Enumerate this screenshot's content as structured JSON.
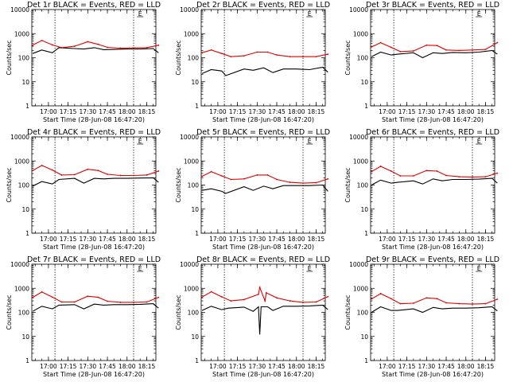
{
  "common": {
    "ylabel": "Counts/sec",
    "xlabel": "Start Time (28-Jun-08 16:47:20)",
    "x_ticks": [
      "17:00",
      "17:15",
      "17:30",
      "17:45",
      "18:00",
      "18:15"
    ],
    "y_ticks": [
      "1",
      "10",
      "100",
      "1000",
      "10000"
    ],
    "y_scale": "log",
    "ylim": [
      1,
      10000
    ],
    "xlim_minutes_of_day": [
      1007.33,
      1102
    ],
    "events_line_color": "#000000",
    "lld_line_color": "#e00000",
    "e_marker": "E",
    "dotted_verticals": [
      "17:05",
      "18:05"
    ]
  },
  "chart_data": [
    {
      "type": "line",
      "title": "Det 1r BLACK = Events, RED = LLD",
      "series": [
        {
          "name": "Events",
          "x": [
            "16:48",
            "16:55",
            "17:03",
            "17:08",
            "17:20",
            "17:27",
            "17:35",
            "17:42",
            "17:50",
            "18:00",
            "18:10",
            "18:20",
            "18:24"
          ],
          "y": [
            150,
            210,
            160,
            260,
            240,
            230,
            260,
            215,
            220,
            230,
            230,
            240,
            160
          ]
        },
        {
          "name": "LLD",
          "x": [
            "16:48",
            "16:55",
            "17:03",
            "17:10",
            "17:20",
            "17:30",
            "17:38",
            "17:45",
            "17:55",
            "18:05",
            "18:15",
            "18:24"
          ],
          "y": [
            330,
            520,
            340,
            260,
            300,
            460,
            360,
            270,
            250,
            255,
            260,
            330
          ]
        }
      ]
    },
    {
      "type": "line",
      "title": "Det 2r BLACK = Events, RED = LLD",
      "series": [
        {
          "name": "Events",
          "x": [
            "16:48",
            "16:55",
            "17:03",
            "17:06",
            "17:20",
            "17:27",
            "17:35",
            "17:42",
            "17:50",
            "18:00",
            "18:10",
            "18:20",
            "18:24"
          ],
          "y": [
            22,
            32,
            28,
            18,
            34,
            30,
            38,
            24,
            34,
            34,
            32,
            40,
            25
          ]
        },
        {
          "name": "LLD",
          "x": [
            "16:48",
            "16:55",
            "17:03",
            "17:10",
            "17:20",
            "17:30",
            "17:38",
            "17:45",
            "17:55",
            "18:05",
            "18:15",
            "18:24"
          ],
          "y": [
            160,
            210,
            150,
            110,
            120,
            170,
            170,
            130,
            110,
            110,
            110,
            140
          ]
        }
      ]
    },
    {
      "type": "line",
      "title": "Det 3r BLACK = Events, RED = LLD",
      "series": [
        {
          "name": "Events",
          "x": [
            "16:48",
            "16:55",
            "17:03",
            "17:08",
            "17:20",
            "17:27",
            "17:35",
            "17:42",
            "17:50",
            "18:00",
            "18:10",
            "18:20",
            "18:24"
          ],
          "y": [
            110,
            170,
            130,
            140,
            160,
            100,
            160,
            150,
            165,
            160,
            170,
            200,
            140
          ]
        },
        {
          "name": "LLD",
          "x": [
            "16:48",
            "16:55",
            "17:03",
            "17:10",
            "17:20",
            "17:30",
            "17:38",
            "17:45",
            "17:55",
            "18:05",
            "18:15",
            "18:24"
          ],
          "y": [
            280,
            420,
            270,
            180,
            190,
            330,
            320,
            210,
            200,
            210,
            220,
            420
          ]
        }
      ]
    },
    {
      "type": "line",
      "title": "Det 4r BLACK = Events, RED = LLD",
      "series": [
        {
          "name": "Events",
          "x": [
            "16:48",
            "16:55",
            "17:03",
            "17:08",
            "17:20",
            "17:27",
            "17:35",
            "17:42",
            "17:50",
            "18:00",
            "18:10",
            "18:20",
            "18:24"
          ],
          "y": [
            90,
            140,
            110,
            170,
            190,
            120,
            190,
            180,
            190,
            190,
            195,
            200,
            130
          ]
        },
        {
          "name": "LLD",
          "x": [
            "16:48",
            "16:55",
            "17:03",
            "17:10",
            "17:20",
            "17:30",
            "17:38",
            "17:45",
            "17:55",
            "18:05",
            "18:15",
            "18:24"
          ],
          "y": [
            400,
            650,
            420,
            260,
            270,
            450,
            400,
            280,
            250,
            250,
            260,
            380
          ]
        }
      ]
    },
    {
      "type": "line",
      "title": "Det 5r BLACK = Events, RED = LLD",
      "series": [
        {
          "name": "Events",
          "x": [
            "16:48",
            "16:55",
            "17:03",
            "17:06",
            "17:20",
            "17:27",
            "17:35",
            "17:42",
            "17:50",
            "18:00",
            "18:10",
            "18:20",
            "18:24"
          ],
          "y": [
            60,
            70,
            55,
            45,
            85,
            60,
            90,
            70,
            95,
            95,
            95,
            100,
            55
          ]
        },
        {
          "name": "LLD",
          "x": [
            "16:48",
            "16:55",
            "17:03",
            "17:10",
            "17:20",
            "17:30",
            "17:38",
            "17:45",
            "17:55",
            "18:05",
            "18:15",
            "18:24"
          ],
          "y": [
            230,
            360,
            240,
            170,
            180,
            260,
            260,
            170,
            130,
            120,
            125,
            180
          ]
        }
      ]
    },
    {
      "type": "line",
      "title": "Det 6r BLACK = Events, RED = LLD",
      "series": [
        {
          "name": "Events",
          "x": [
            "16:48",
            "16:55",
            "17:03",
            "17:08",
            "17:20",
            "17:27",
            "17:35",
            "17:42",
            "17:50",
            "18:00",
            "18:10",
            "18:20",
            "18:24"
          ],
          "y": [
            100,
            160,
            120,
            130,
            150,
            110,
            180,
            150,
            170,
            170,
            175,
            190,
            120
          ]
        },
        {
          "name": "LLD",
          "x": [
            "16:48",
            "16:55",
            "17:03",
            "17:10",
            "17:20",
            "17:30",
            "17:38",
            "17:45",
            "17:55",
            "18:05",
            "18:15",
            "18:24"
          ],
          "y": [
            360,
            600,
            380,
            240,
            240,
            400,
            380,
            250,
            220,
            215,
            220,
            310
          ]
        }
      ]
    },
    {
      "type": "line",
      "title": "Det 7r BLACK = Events, RED = LLD",
      "series": [
        {
          "name": "Events",
          "x": [
            "16:48",
            "16:55",
            "17:03",
            "17:08",
            "17:20",
            "17:27",
            "17:35",
            "17:42",
            "17:50",
            "18:00",
            "18:10",
            "18:20",
            "18:24"
          ],
          "y": [
            110,
            180,
            140,
            200,
            210,
            140,
            220,
            200,
            210,
            210,
            215,
            230,
            150
          ]
        },
        {
          "name": "LLD",
          "x": [
            "16:48",
            "16:55",
            "17:03",
            "17:10",
            "17:20",
            "17:30",
            "17:38",
            "17:45",
            "17:55",
            "18:05",
            "18:15",
            "18:24"
          ],
          "y": [
            420,
            700,
            430,
            270,
            270,
            470,
            420,
            290,
            260,
            260,
            270,
            420
          ]
        }
      ]
    },
    {
      "type": "line",
      "title": "Det 8r BLACK = Events, RED = LLD",
      "series": [
        {
          "name": "Events",
          "x": [
            "16:48",
            "16:55",
            "17:03",
            "17:08",
            "17:20",
            "17:27",
            "17:31",
            "17:32",
            "17:33",
            "17:38",
            "17:42",
            "17:50",
            "18:00",
            "18:10",
            "18:20",
            "18:24"
          ],
          "y": [
            120,
            180,
            130,
            150,
            165,
            110,
            170,
            12,
            170,
            170,
            120,
            180,
            180,
            185,
            200,
            130
          ]
        },
        {
          "name": "LLD",
          "x": [
            "16:48",
            "16:55",
            "17:03",
            "17:10",
            "17:20",
            "17:31",
            "17:32",
            "17:36",
            "17:37",
            "17:45",
            "17:55",
            "18:05",
            "18:15",
            "18:24"
          ],
          "y": [
            430,
            720,
            440,
            300,
            340,
            560,
            1100,
            300,
            650,
            400,
            300,
            260,
            270,
            450
          ]
        }
      ]
    },
    {
      "type": "line",
      "title": "Det 9r BLACK = Events, RED = LLD",
      "series": [
        {
          "name": "Events",
          "x": [
            "16:48",
            "16:55",
            "17:03",
            "17:08",
            "17:20",
            "17:27",
            "17:35",
            "17:42",
            "17:50",
            "18:00",
            "18:10",
            "18:20",
            "18:24"
          ],
          "y": [
            100,
            170,
            120,
            120,
            140,
            100,
            160,
            140,
            150,
            150,
            155,
            170,
            115
          ]
        },
        {
          "name": "LLD",
          "x": [
            "16:48",
            "16:55",
            "17:03",
            "17:10",
            "17:20",
            "17:30",
            "17:38",
            "17:45",
            "17:55",
            "18:05",
            "18:15",
            "18:24"
          ],
          "y": [
            360,
            600,
            370,
            230,
            240,
            400,
            370,
            250,
            230,
            220,
            230,
            350
          ]
        }
      ]
    }
  ]
}
